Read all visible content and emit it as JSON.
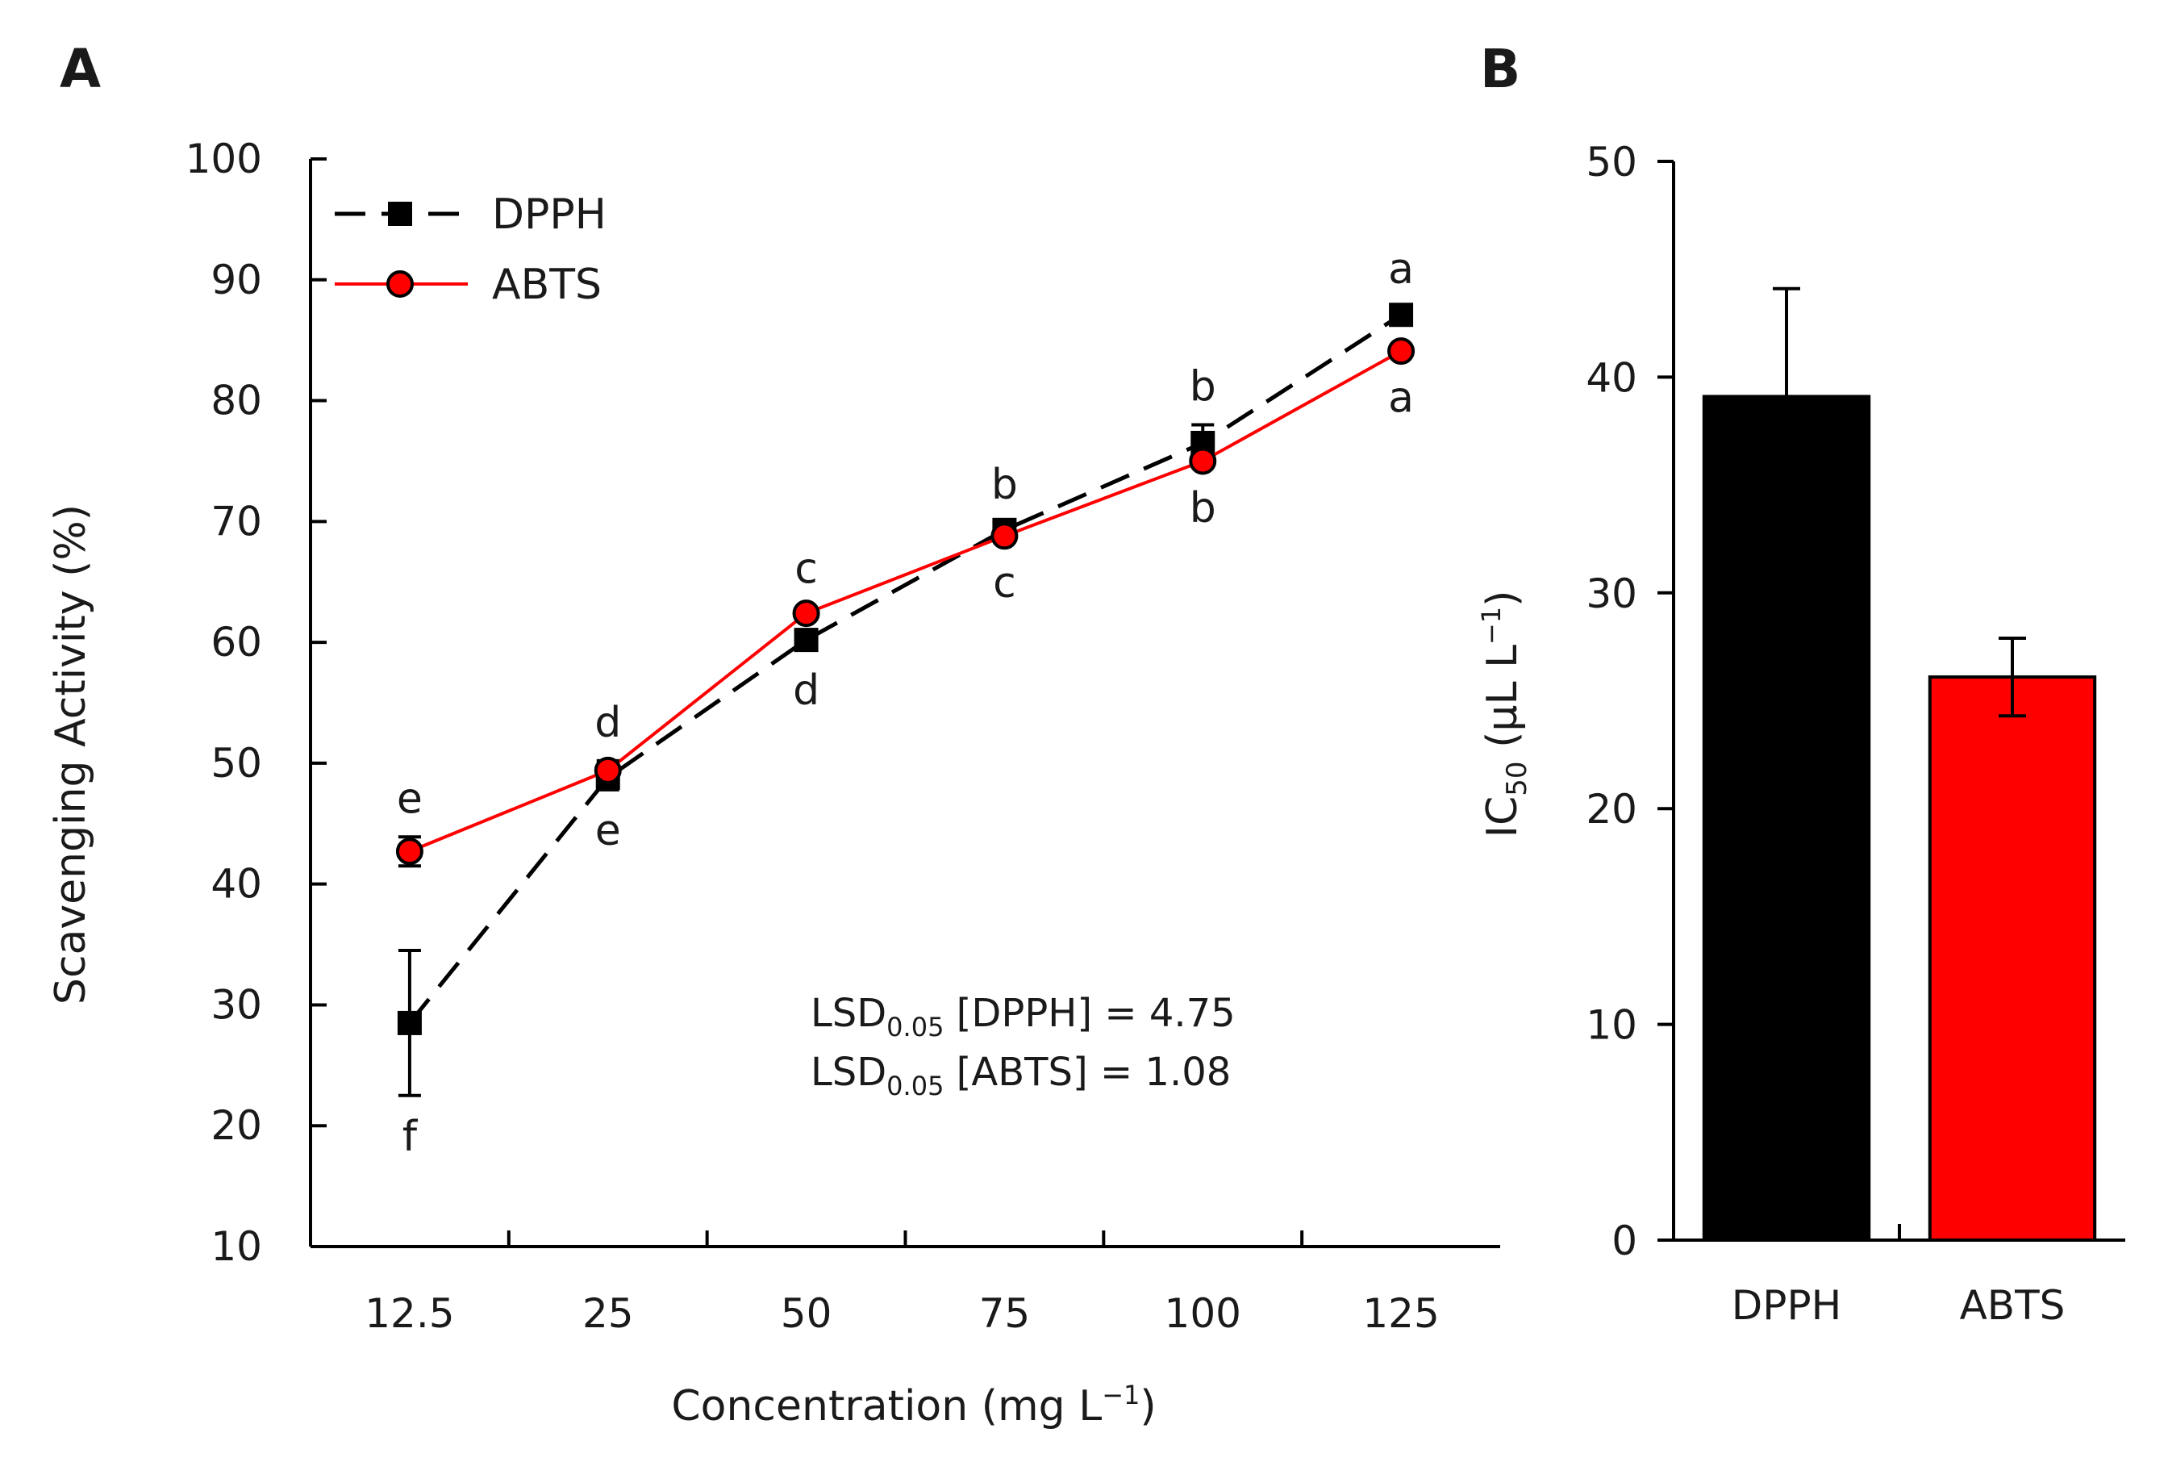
{
  "chart_data": [
    {
      "panel": "A",
      "type": "line",
      "categories": [
        "12.5",
        "25",
        "50",
        "75",
        "100",
        "125"
      ],
      "xlabel": "Concentration (mg L",
      "xlabel_sup": "−1",
      "xlabel_end": ")",
      "ylabel": "Scavenging Activity (%)",
      "ylim": [
        10,
        100
      ],
      "yticks": [
        10,
        20,
        30,
        40,
        50,
        60,
        70,
        80,
        90,
        100
      ],
      "grid": false,
      "legend_position": "top-left",
      "series": [
        {
          "name": "DPPH",
          "color": "#000000",
          "line_style": "dashed",
          "marker": "square",
          "values": [
            28.5,
            48.8,
            60.2,
            69.3,
            76.5,
            87.1
          ],
          "errors": [
            6.0,
            1.0,
            0.8,
            0.6,
            1.5,
            0.6
          ],
          "letters": [
            "f",
            "e",
            "d",
            "b",
            "b",
            "a"
          ],
          "letter_positions": [
            "below",
            "below",
            "below",
            "above",
            "above",
            "above"
          ]
        },
        {
          "name": "ABTS",
          "color": "#ff0000",
          "line_style": "solid",
          "marker": "circle",
          "values": [
            42.7,
            49.4,
            62.4,
            68.8,
            75.0,
            84.1
          ],
          "errors": [
            1.2,
            0.8,
            0.5,
            0.5,
            0.5,
            0.5
          ],
          "letters": [
            "e",
            "d",
            "c",
            "c",
            "b",
            "a"
          ],
          "letter_positions": [
            "above",
            "above",
            "above",
            "below",
            "below",
            "below"
          ]
        }
      ],
      "annotations": [
        {
          "prefix": "LSD",
          "sub": "0.05",
          "text": " [DPPH] = 4.75"
        },
        {
          "prefix": "LSD",
          "sub": "0.05",
          "text": " [ABTS] = 1.08"
        }
      ]
    },
    {
      "panel": "B",
      "type": "bar",
      "categories": [
        "DPPH",
        "ABTS"
      ],
      "values": [
        39.1,
        26.1
      ],
      "errors": [
        5.0,
        1.8
      ],
      "colors": [
        "#000000",
        "#ff0000"
      ],
      "ylabel_prefix": "IC",
      "ylabel_sub": "50",
      "ylabel_mid": " (μL L",
      "ylabel_sup": "−1",
      "ylabel_end": ")",
      "ylim": [
        0,
        50
      ],
      "yticks": [
        0,
        10,
        20,
        30,
        40,
        50
      ],
      "grid": false
    }
  ]
}
